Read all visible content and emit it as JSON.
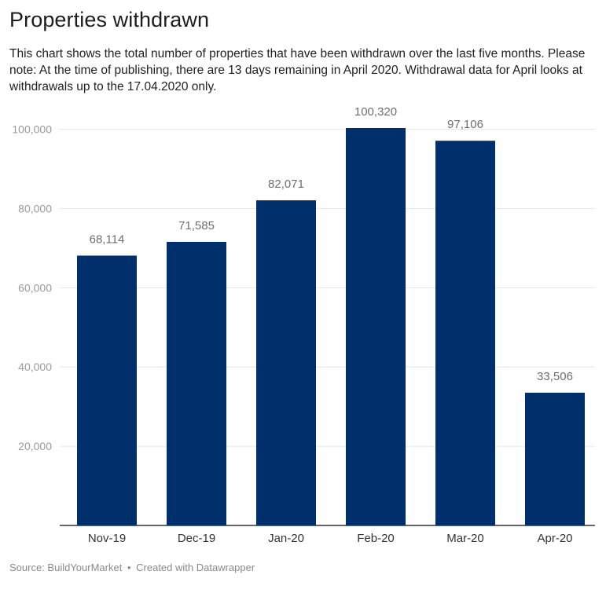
{
  "title": "Properties withdrawn",
  "subtitle": "This chart shows the total number of properties that have been withdrawn over the last five months. Please note: At the time of publishing, there are 13 days remaining in April 2020. Withdrawal data for April looks at withdrawals up to the 17.04.2020 only.",
  "footer": {
    "source": "Source: BuildYourMarket",
    "separator": "•",
    "credit": "Created with Datawrapper"
  },
  "colors": {
    "bar": "#00306b",
    "grid": "#e6e6e6",
    "baseline": "#333333",
    "tick_label": "#9a9a9a",
    "value_label": "#6e6e6e",
    "category_label": "#333333"
  },
  "chart_data": {
    "type": "bar",
    "categories": [
      "Nov-19",
      "Dec-19",
      "Jan-20",
      "Feb-20",
      "Mar-20",
      "Apr-20"
    ],
    "values": [
      68114,
      71585,
      82071,
      100320,
      97106,
      33506
    ],
    "value_labels": [
      "68,114",
      "71,585",
      "82,071",
      "100,320",
      "97,106",
      "33,506"
    ],
    "yticks": [
      20000,
      40000,
      60000,
      80000,
      100000
    ],
    "ytick_labels": [
      "20,000",
      "40,000",
      "60,000",
      "80,000",
      "100,000"
    ],
    "ylim": [
      0,
      100320
    ],
    "grid": true,
    "xlabel": "",
    "ylabel": ""
  }
}
